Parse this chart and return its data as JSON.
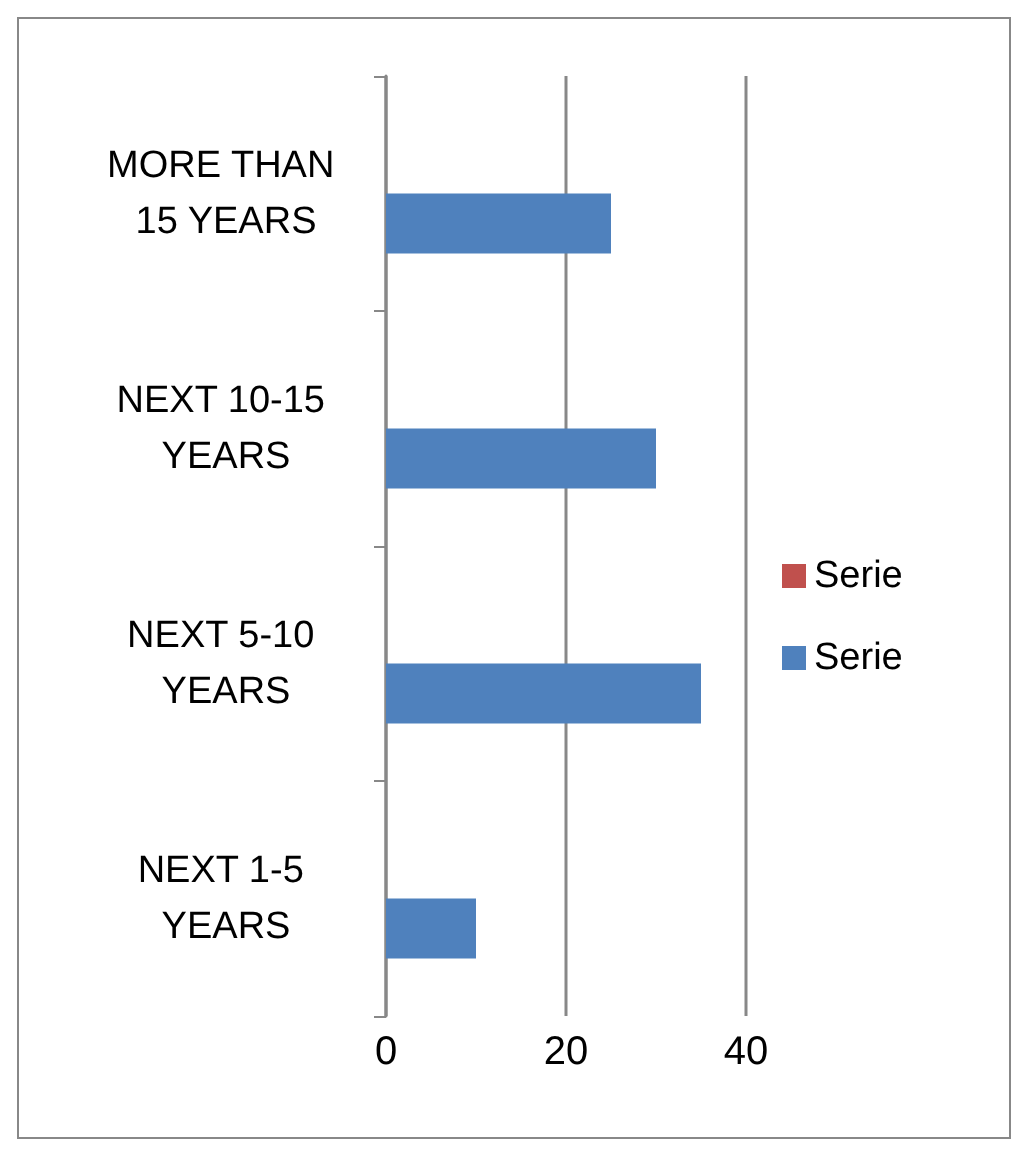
{
  "chart_data": {
    "type": "bar",
    "orientation": "horizontal",
    "categories": [
      "MORE THAN 15 YEARS",
      "NEXT 10-15 YEARS",
      "NEXT 5-10 YEARS",
      "NEXT 1-5 YEARS"
    ],
    "series": [
      {
        "name": "Serie",
        "color": "#c0504d",
        "values": [
          0,
          0,
          0,
          0
        ]
      },
      {
        "name": "Serie",
        "color": "#4f81bd",
        "values": [
          25,
          30,
          35,
          10
        ]
      }
    ],
    "xlim": [
      0,
      40
    ],
    "xticks": [
      0,
      20,
      40
    ],
    "grid": "x",
    "legend": "right"
  }
}
